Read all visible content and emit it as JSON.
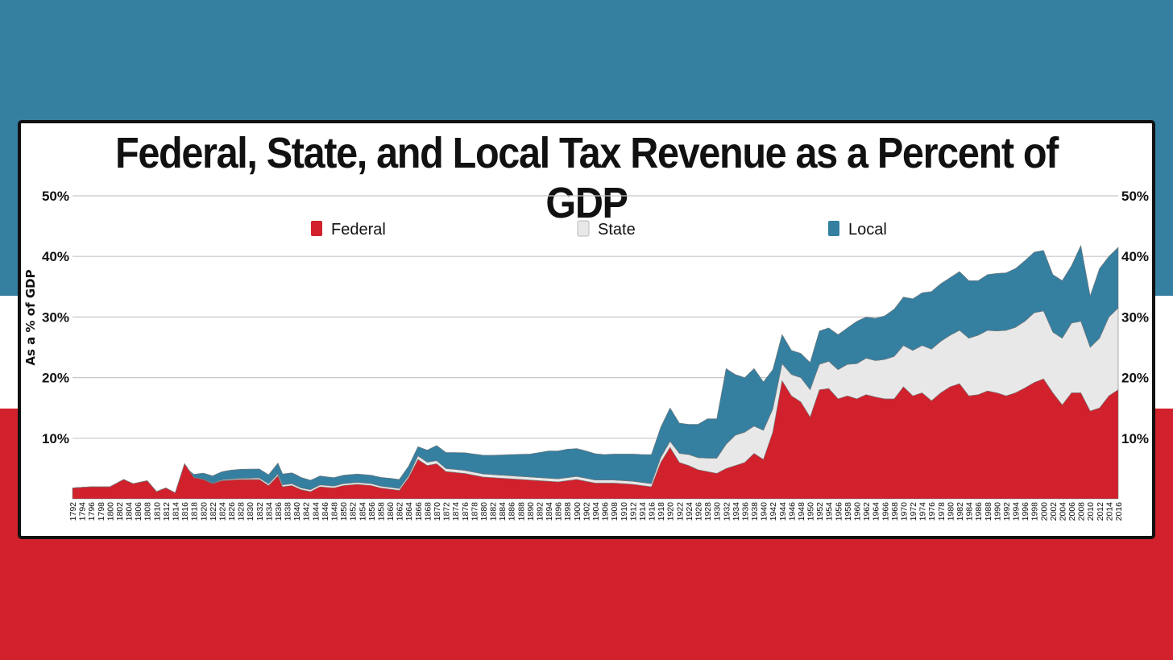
{
  "background": {
    "top_color": "#357fa1",
    "middle_color": "#ffffff",
    "bottom_color": "#d0212c"
  },
  "chart_data": {
    "type": "area",
    "stacked": true,
    "title": "Federal, State, and Local Tax Revenue as a Percent of GDP",
    "ylabel": "As a % of GDP",
    "xlabel": "",
    "ylim": [
      0,
      50
    ],
    "yticks": [
      10,
      20,
      30,
      40,
      50
    ],
    "ytick_labels": [
      "10%",
      "20%",
      "30%",
      "40%",
      "50%"
    ],
    "y_axis_sides": [
      "left",
      "right"
    ],
    "grid": true,
    "legend_position": "top",
    "x_start": 1792,
    "x_end": 2016,
    "x_tick_step": 2,
    "series": [
      {
        "name": "Federal",
        "color": "#d0212c",
        "points": [
          [
            1792,
            1.8
          ],
          [
            1796,
            2.0
          ],
          [
            1800,
            2.0
          ],
          [
            1803,
            3.2
          ],
          [
            1805,
            2.5
          ],
          [
            1808,
            3.0
          ],
          [
            1810,
            1.2
          ],
          [
            1812,
            1.8
          ],
          [
            1814,
            1.0
          ],
          [
            1816,
            5.8
          ],
          [
            1818,
            3.5
          ],
          [
            1820,
            3.2
          ],
          [
            1822,
            2.5
          ],
          [
            1824,
            3.0
          ],
          [
            1828,
            3.2
          ],
          [
            1832,
            3.2
          ],
          [
            1834,
            2.2
          ],
          [
            1836,
            3.8
          ],
          [
            1837,
            2.0
          ],
          [
            1839,
            2.2
          ],
          [
            1841,
            1.5
          ],
          [
            1843,
            1.2
          ],
          [
            1845,
            2.0
          ],
          [
            1848,
            1.8
          ],
          [
            1850,
            2.2
          ],
          [
            1853,
            2.4
          ],
          [
            1856,
            2.2
          ],
          [
            1858,
            1.8
          ],
          [
            1860,
            1.6
          ],
          [
            1862,
            1.4
          ],
          [
            1864,
            3.5
          ],
          [
            1866,
            6.5
          ],
          [
            1868,
            5.5
          ],
          [
            1870,
            5.8
          ],
          [
            1872,
            4.5
          ],
          [
            1876,
            4.2
          ],
          [
            1880,
            3.6
          ],
          [
            1884,
            3.4
          ],
          [
            1888,
            3.2
          ],
          [
            1892,
            3.0
          ],
          [
            1896,
            2.8
          ],
          [
            1900,
            3.2
          ],
          [
            1904,
            2.6
          ],
          [
            1908,
            2.6
          ],
          [
            1912,
            2.4
          ],
          [
            1916,
            2.0
          ],
          [
            1918,
            6.0
          ],
          [
            1920,
            8.5
          ],
          [
            1922,
            6.0
          ],
          [
            1924,
            5.5
          ],
          [
            1926,
            4.8
          ],
          [
            1928,
            4.5
          ],
          [
            1930,
            4.2
          ],
          [
            1932,
            5.0
          ],
          [
            1934,
            5.5
          ],
          [
            1936,
            6.0
          ],
          [
            1938,
            7.5
          ],
          [
            1940,
            6.5
          ],
          [
            1942,
            11.0
          ],
          [
            1944,
            19.5
          ],
          [
            1946,
            17.0
          ],
          [
            1948,
            16.0
          ],
          [
            1950,
            13.5
          ],
          [
            1952,
            18.0
          ],
          [
            1954,
            18.2
          ],
          [
            1956,
            16.5
          ],
          [
            1958,
            17.0
          ],
          [
            1960,
            16.5
          ],
          [
            1962,
            17.2
          ],
          [
            1964,
            16.8
          ],
          [
            1966,
            16.5
          ],
          [
            1968,
            16.5
          ],
          [
            1970,
            18.5
          ],
          [
            1972,
            17.0
          ],
          [
            1974,
            17.5
          ],
          [
            1976,
            16.2
          ],
          [
            1978,
            17.5
          ],
          [
            1980,
            18.5
          ],
          [
            1982,
            19.0
          ],
          [
            1984,
            17.0
          ],
          [
            1986,
            17.2
          ],
          [
            1988,
            17.8
          ],
          [
            1990,
            17.5
          ],
          [
            1992,
            17.0
          ],
          [
            1994,
            17.5
          ],
          [
            1996,
            18.3
          ],
          [
            1998,
            19.2
          ],
          [
            2000,
            19.8
          ],
          [
            2002,
            17.5
          ],
          [
            2004,
            15.5
          ],
          [
            2006,
            17.5
          ],
          [
            2008,
            17.5
          ],
          [
            2010,
            14.5
          ],
          [
            2012,
            15.0
          ],
          [
            2014,
            17.0
          ],
          [
            2016,
            18.0
          ]
        ]
      },
      {
        "name": "State",
        "color": "#e8e8e8",
        "points": [
          [
            1792,
            0
          ],
          [
            1816,
            0
          ],
          [
            1836,
            0.3
          ],
          [
            1864,
            0.3
          ],
          [
            1866,
            0.6
          ],
          [
            1870,
            0.5
          ],
          [
            1880,
            0.5
          ],
          [
            1900,
            0.5
          ],
          [
            1916,
            0.5
          ],
          [
            1918,
            0.8
          ],
          [
            1920,
            1.0
          ],
          [
            1922,
            1.5
          ],
          [
            1924,
            1.8
          ],
          [
            1926,
            2.0
          ],
          [
            1928,
            2.2
          ],
          [
            1930,
            2.5
          ],
          [
            1932,
            4.0
          ],
          [
            1934,
            5.0
          ],
          [
            1936,
            5.0
          ],
          [
            1938,
            4.5
          ],
          [
            1940,
            4.8
          ],
          [
            1942,
            3.8
          ],
          [
            1944,
            2.8
          ],
          [
            1946,
            3.5
          ],
          [
            1948,
            4.0
          ],
          [
            1950,
            4.5
          ],
          [
            1952,
            4.2
          ],
          [
            1954,
            4.5
          ],
          [
            1956,
            4.8
          ],
          [
            1958,
            5.2
          ],
          [
            1960,
            5.8
          ],
          [
            1962,
            6.0
          ],
          [
            1964,
            6.0
          ],
          [
            1966,
            6.5
          ],
          [
            1968,
            7.0
          ],
          [
            1970,
            6.8
          ],
          [
            1972,
            7.5
          ],
          [
            1974,
            7.8
          ],
          [
            1976,
            8.5
          ],
          [
            1978,
            8.5
          ],
          [
            1980,
            8.5
          ],
          [
            1982,
            8.8
          ],
          [
            1984,
            9.5
          ],
          [
            1986,
            9.8
          ],
          [
            1988,
            10.0
          ],
          [
            1990,
            10.2
          ],
          [
            1992,
            10.8
          ],
          [
            1994,
            10.8
          ],
          [
            1996,
            11.0
          ],
          [
            1998,
            11.5
          ],
          [
            2000,
            11.2
          ],
          [
            2002,
            10.0
          ],
          [
            2004,
            11.0
          ],
          [
            2006,
            11.5
          ],
          [
            2008,
            11.8
          ],
          [
            2010,
            10.5
          ],
          [
            2012,
            11.5
          ],
          [
            2014,
            13.0
          ],
          [
            2016,
            13.5
          ]
        ]
      },
      {
        "name": "Local",
        "color": "#357fa1",
        "points": [
          [
            1792,
            0
          ],
          [
            1817,
            0
          ],
          [
            1818,
            0.5
          ],
          [
            1820,
            1.0
          ],
          [
            1822,
            1.2
          ],
          [
            1826,
            1.5
          ],
          [
            1830,
            1.5
          ],
          [
            1834,
            1.5
          ],
          [
            1836,
            1.8
          ],
          [
            1840,
            1.8
          ],
          [
            1844,
            1.5
          ],
          [
            1848,
            1.4
          ],
          [
            1852,
            1.4
          ],
          [
            1856,
            1.4
          ],
          [
            1860,
            1.5
          ],
          [
            1862,
            1.5
          ],
          [
            1864,
            1.6
          ],
          [
            1866,
            1.5
          ],
          [
            1868,
            2.0
          ],
          [
            1870,
            2.5
          ],
          [
            1874,
            2.8
          ],
          [
            1878,
            3.0
          ],
          [
            1882,
            3.2
          ],
          [
            1886,
            3.5
          ],
          [
            1890,
            3.8
          ],
          [
            1894,
            4.5
          ],
          [
            1898,
            4.7
          ],
          [
            1902,
            4.5
          ],
          [
            1906,
            4.2
          ],
          [
            1910,
            4.4
          ],
          [
            1914,
            4.6
          ],
          [
            1916,
            4.8
          ],
          [
            1918,
            5.0
          ],
          [
            1920,
            5.5
          ],
          [
            1922,
            5.0
          ],
          [
            1924,
            5.0
          ],
          [
            1926,
            5.5
          ],
          [
            1928,
            6.5
          ],
          [
            1930,
            6.5
          ],
          [
            1932,
            12.5
          ],
          [
            1934,
            10.0
          ],
          [
            1936,
            9.0
          ],
          [
            1938,
            9.5
          ],
          [
            1940,
            8.0
          ],
          [
            1942,
            6.5
          ],
          [
            1944,
            4.8
          ],
          [
            1946,
            4.0
          ],
          [
            1948,
            4.0
          ],
          [
            1950,
            4.5
          ],
          [
            1952,
            5.5
          ],
          [
            1954,
            5.5
          ],
          [
            1956,
            5.8
          ],
          [
            1958,
            6.0
          ],
          [
            1960,
            7.0
          ],
          [
            1962,
            6.8
          ],
          [
            1964,
            7.0
          ],
          [
            1966,
            7.2
          ],
          [
            1968,
            7.8
          ],
          [
            1970,
            8.0
          ],
          [
            1972,
            8.5
          ],
          [
            1974,
            8.7
          ],
          [
            1976,
            9.5
          ],
          [
            1978,
            9.5
          ],
          [
            1980,
            9.5
          ],
          [
            1982,
            9.7
          ],
          [
            1984,
            9.5
          ],
          [
            1986,
            9.0
          ],
          [
            1988,
            9.2
          ],
          [
            1990,
            9.5
          ],
          [
            1992,
            9.5
          ],
          [
            1994,
            9.7
          ],
          [
            1996,
            10.0
          ],
          [
            1998,
            10.0
          ],
          [
            2000,
            10.0
          ],
          [
            2002,
            9.5
          ],
          [
            2004,
            9.5
          ],
          [
            2006,
            9.5
          ],
          [
            2008,
            12.5
          ],
          [
            2010,
            8.5
          ],
          [
            2012,
            11.5
          ],
          [
            2014,
            10.0
          ],
          [
            2016,
            10.0
          ]
        ]
      }
    ]
  }
}
